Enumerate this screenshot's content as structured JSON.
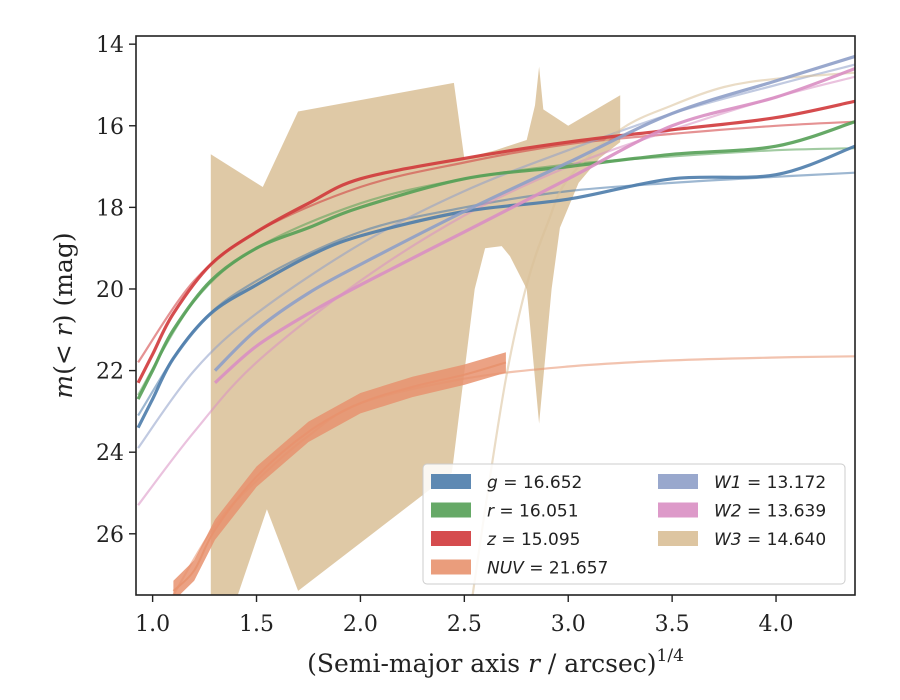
{
  "chart_data": {
    "type": "line",
    "xlabel": "(Semi-major axis r / arcsec)^1/4",
    "ylabel": "m(< r) (mag)",
    "xlim": [
      0.92,
      4.38
    ],
    "ylim": [
      27.5,
      13.8
    ],
    "y_inverted": true,
    "x_ticks": [
      1.0,
      1.5,
      2.0,
      2.5,
      3.0,
      3.5,
      4.0
    ],
    "x_tick_labels": [
      "1.0",
      "1.5",
      "2.0",
      "2.5",
      "3.0",
      "3.5",
      "4.0"
    ],
    "y_ticks": [
      14,
      16,
      18,
      20,
      22,
      24,
      26
    ],
    "y_tick_labels": [
      "14",
      "16",
      "18",
      "20",
      "22",
      "24",
      "26"
    ],
    "legend_position": "lower-right",
    "legend_columns": 2,
    "series": [
      {
        "name": "g = 16.652",
        "color": "#4c7cab",
        "data": [
          [
            0.93,
            23.4
          ],
          [
            1.0,
            22.7
          ],
          [
            1.1,
            21.7
          ],
          [
            1.28,
            20.6
          ],
          [
            1.5,
            19.9
          ],
          [
            1.75,
            19.2
          ],
          [
            2.0,
            18.7
          ],
          [
            2.5,
            18.1
          ],
          [
            3.0,
            17.8
          ],
          [
            3.5,
            17.3
          ],
          [
            4.0,
            17.2
          ],
          [
            4.38,
            16.5
          ]
        ],
        "model": [
          [
            0.93,
            23.1
          ],
          [
            1.2,
            21.0
          ],
          [
            1.5,
            19.8
          ],
          [
            2.0,
            18.6
          ],
          [
            2.5,
            18.0
          ],
          [
            3.0,
            17.6
          ],
          [
            3.5,
            17.4
          ],
          [
            4.0,
            17.25
          ],
          [
            4.38,
            17.15
          ]
        ]
      },
      {
        "name": "r = 16.051",
        "color": "#55a056",
        "data": [
          [
            0.93,
            22.7
          ],
          [
            1.0,
            22.0
          ],
          [
            1.1,
            21.0
          ],
          [
            1.28,
            19.8
          ],
          [
            1.5,
            19.0
          ],
          [
            1.75,
            18.5
          ],
          [
            2.0,
            18.0
          ],
          [
            2.5,
            17.3
          ],
          [
            3.0,
            17.0
          ],
          [
            3.5,
            16.7
          ],
          [
            4.0,
            16.5
          ],
          [
            4.38,
            15.9
          ]
        ],
        "model": [
          [
            0.93,
            22.6
          ],
          [
            1.2,
            20.3
          ],
          [
            1.5,
            19.0
          ],
          [
            2.0,
            17.9
          ],
          [
            2.5,
            17.3
          ],
          [
            3.0,
            16.95
          ],
          [
            3.5,
            16.75
          ],
          [
            4.0,
            16.6
          ],
          [
            4.38,
            16.55
          ]
        ]
      },
      {
        "name": "z = 15.095",
        "color": "#d0393b",
        "data": [
          [
            0.93,
            22.3
          ],
          [
            1.0,
            21.6
          ],
          [
            1.1,
            20.6
          ],
          [
            1.28,
            19.4
          ],
          [
            1.5,
            18.6
          ],
          [
            1.75,
            17.9
          ],
          [
            2.0,
            17.3
          ],
          [
            2.5,
            16.8
          ],
          [
            3.0,
            16.4
          ],
          [
            3.5,
            16.1
          ],
          [
            4.0,
            15.8
          ],
          [
            4.38,
            15.4
          ]
        ],
        "model": [
          [
            0.93,
            21.8
          ],
          [
            1.2,
            19.8
          ],
          [
            1.5,
            18.6
          ],
          [
            2.0,
            17.5
          ],
          [
            2.5,
            16.9
          ],
          [
            3.0,
            16.45
          ],
          [
            3.5,
            16.2
          ],
          [
            4.0,
            16.0
          ],
          [
            4.38,
            15.9
          ]
        ]
      },
      {
        "name": "NUV = 21.657",
        "color": "#e8926e",
        "data": [
          [
            1.1,
            27.4
          ],
          [
            1.2,
            26.9
          ],
          [
            1.3,
            25.9
          ],
          [
            1.5,
            24.6
          ],
          [
            1.75,
            23.5
          ],
          [
            2.0,
            22.8
          ],
          [
            2.25,
            22.4
          ],
          [
            2.5,
            22.1
          ],
          [
            2.7,
            21.8
          ]
        ],
        "band_width": 0.5,
        "model": [
          [
            1.1,
            27.5
          ],
          [
            1.3,
            25.8
          ],
          [
            1.5,
            24.7
          ],
          [
            1.75,
            23.6
          ],
          [
            2.0,
            22.8
          ],
          [
            2.5,
            22.2
          ],
          [
            3.0,
            21.9
          ],
          [
            3.5,
            21.75
          ],
          [
            4.0,
            21.68
          ],
          [
            4.38,
            21.65
          ]
        ]
      },
      {
        "name": "W1 = 13.172",
        "color": "#8e9fc8",
        "data": [
          [
            1.3,
            22.0
          ],
          [
            1.5,
            21.0
          ],
          [
            1.75,
            20.1
          ],
          [
            2.0,
            19.4
          ],
          [
            2.5,
            18.1
          ],
          [
            3.0,
            16.9
          ],
          [
            3.5,
            15.7
          ],
          [
            4.0,
            14.9
          ],
          [
            4.38,
            14.3
          ]
        ],
        "model": [
          [
            0.93,
            23.9
          ],
          [
            1.2,
            22.0
          ],
          [
            1.5,
            20.6
          ],
          [
            2.0,
            18.9
          ],
          [
            2.5,
            17.6
          ],
          [
            3.0,
            16.6
          ],
          [
            3.5,
            15.7
          ],
          [
            4.0,
            15.0
          ],
          [
            4.38,
            14.5
          ]
        ]
      },
      {
        "name": "W2 = 13.639",
        "color": "#d98fc3",
        "data": [
          [
            1.3,
            22.3
          ],
          [
            1.5,
            21.4
          ],
          [
            1.75,
            20.6
          ],
          [
            2.0,
            19.9
          ],
          [
            2.5,
            18.6
          ],
          [
            3.0,
            17.3
          ],
          [
            3.5,
            16.0
          ],
          [
            4.0,
            15.3
          ],
          [
            4.38,
            14.6
          ]
        ],
        "model": [
          [
            0.93,
            25.3
          ],
          [
            1.2,
            23.5
          ],
          [
            1.5,
            21.8
          ],
          [
            2.0,
            19.8
          ],
          [
            2.5,
            18.2
          ],
          [
            3.0,
            17.0
          ],
          [
            3.5,
            16.1
          ],
          [
            4.0,
            15.3
          ],
          [
            4.38,
            14.8
          ]
        ]
      },
      {
        "name": "W3 = 14.640",
        "color": "#d9bf97",
        "model": [
          [
            2.54,
            27.5
          ],
          [
            2.6,
            25.4
          ],
          [
            2.7,
            22.2
          ],
          [
            2.8,
            19.9
          ],
          [
            2.9,
            18.4
          ],
          [
            3.0,
            17.3
          ],
          [
            3.25,
            16.1
          ],
          [
            3.5,
            15.5
          ],
          [
            3.75,
            15.05
          ],
          [
            4.0,
            14.85
          ],
          [
            4.38,
            14.7
          ]
        ],
        "band_upper": [
          [
            1.28,
            16.7
          ],
          [
            1.53,
            17.5
          ],
          [
            1.7,
            15.65
          ],
          [
            2.45,
            14.95
          ],
          [
            2.5,
            16.8
          ],
          [
            2.65,
            16.6
          ],
          [
            2.8,
            16.35
          ],
          [
            2.84,
            15.5
          ],
          [
            2.86,
            14.55
          ],
          [
            2.88,
            15.6
          ],
          [
            3.0,
            16.0
          ],
          [
            3.25,
            15.25
          ]
        ],
        "band_lower": [
          [
            1.28,
            27.5
          ],
          [
            1.41,
            27.5
          ],
          [
            1.55,
            25.4
          ],
          [
            1.7,
            27.4
          ],
          [
            2.44,
            24.5
          ],
          [
            2.55,
            20.0
          ],
          [
            2.6,
            19.0
          ],
          [
            2.68,
            18.95
          ],
          [
            2.72,
            19.2
          ],
          [
            2.8,
            20.0
          ],
          [
            2.86,
            23.3
          ],
          [
            2.92,
            20.0
          ],
          [
            2.96,
            18.5
          ],
          [
            3.05,
            17.4
          ],
          [
            3.15,
            16.8
          ],
          [
            3.25,
            16.4
          ]
        ]
      }
    ]
  }
}
